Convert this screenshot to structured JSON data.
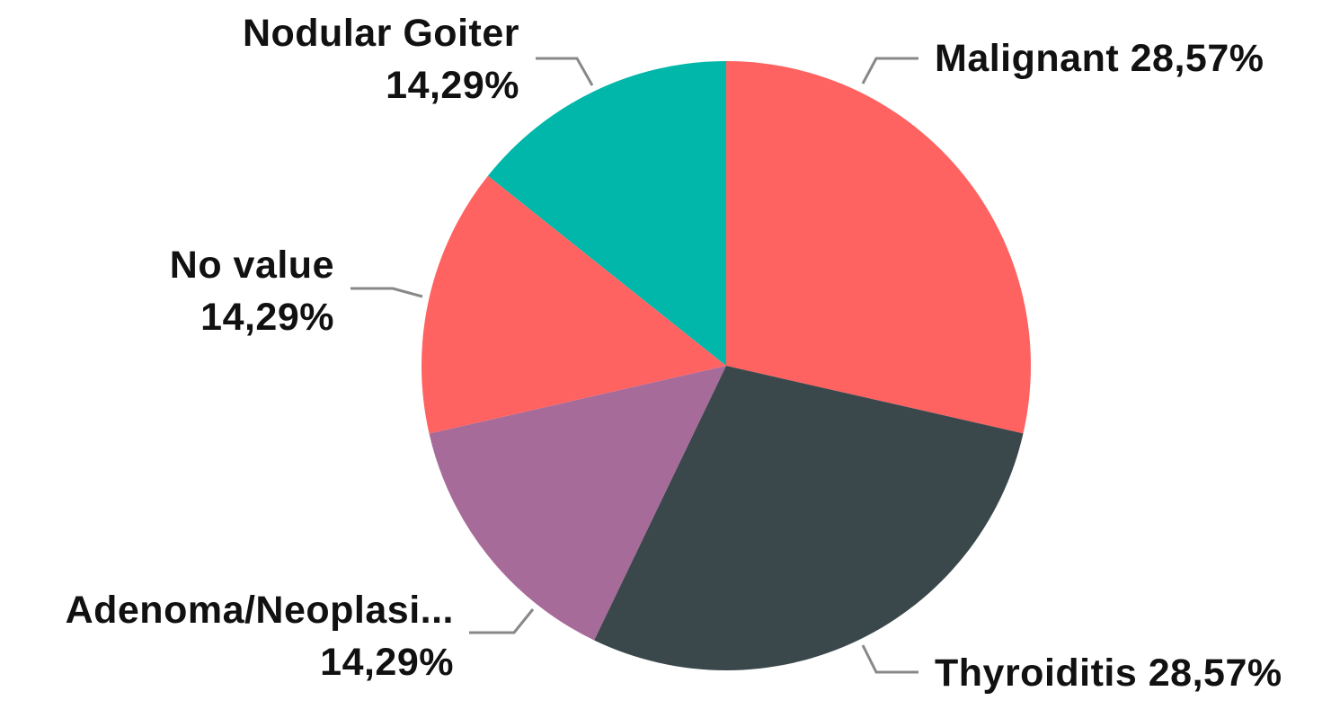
{
  "chart_data": {
    "type": "pie",
    "categories": [
      "Malignant",
      "Thyroiditis",
      "Adenoma/Neoplasi...",
      "No value",
      "Nodular Goiter"
    ],
    "values": [
      28.57,
      28.57,
      14.29,
      14.29,
      14.29
    ],
    "value_labels": [
      "28,57%",
      "28,57%",
      "14,29%",
      "14,29%",
      "14,29%"
    ],
    "colors": [
      "#ff6361",
      "#3a484c",
      "#a66b99",
      "#ff6361",
      "#00b7aa"
    ]
  }
}
